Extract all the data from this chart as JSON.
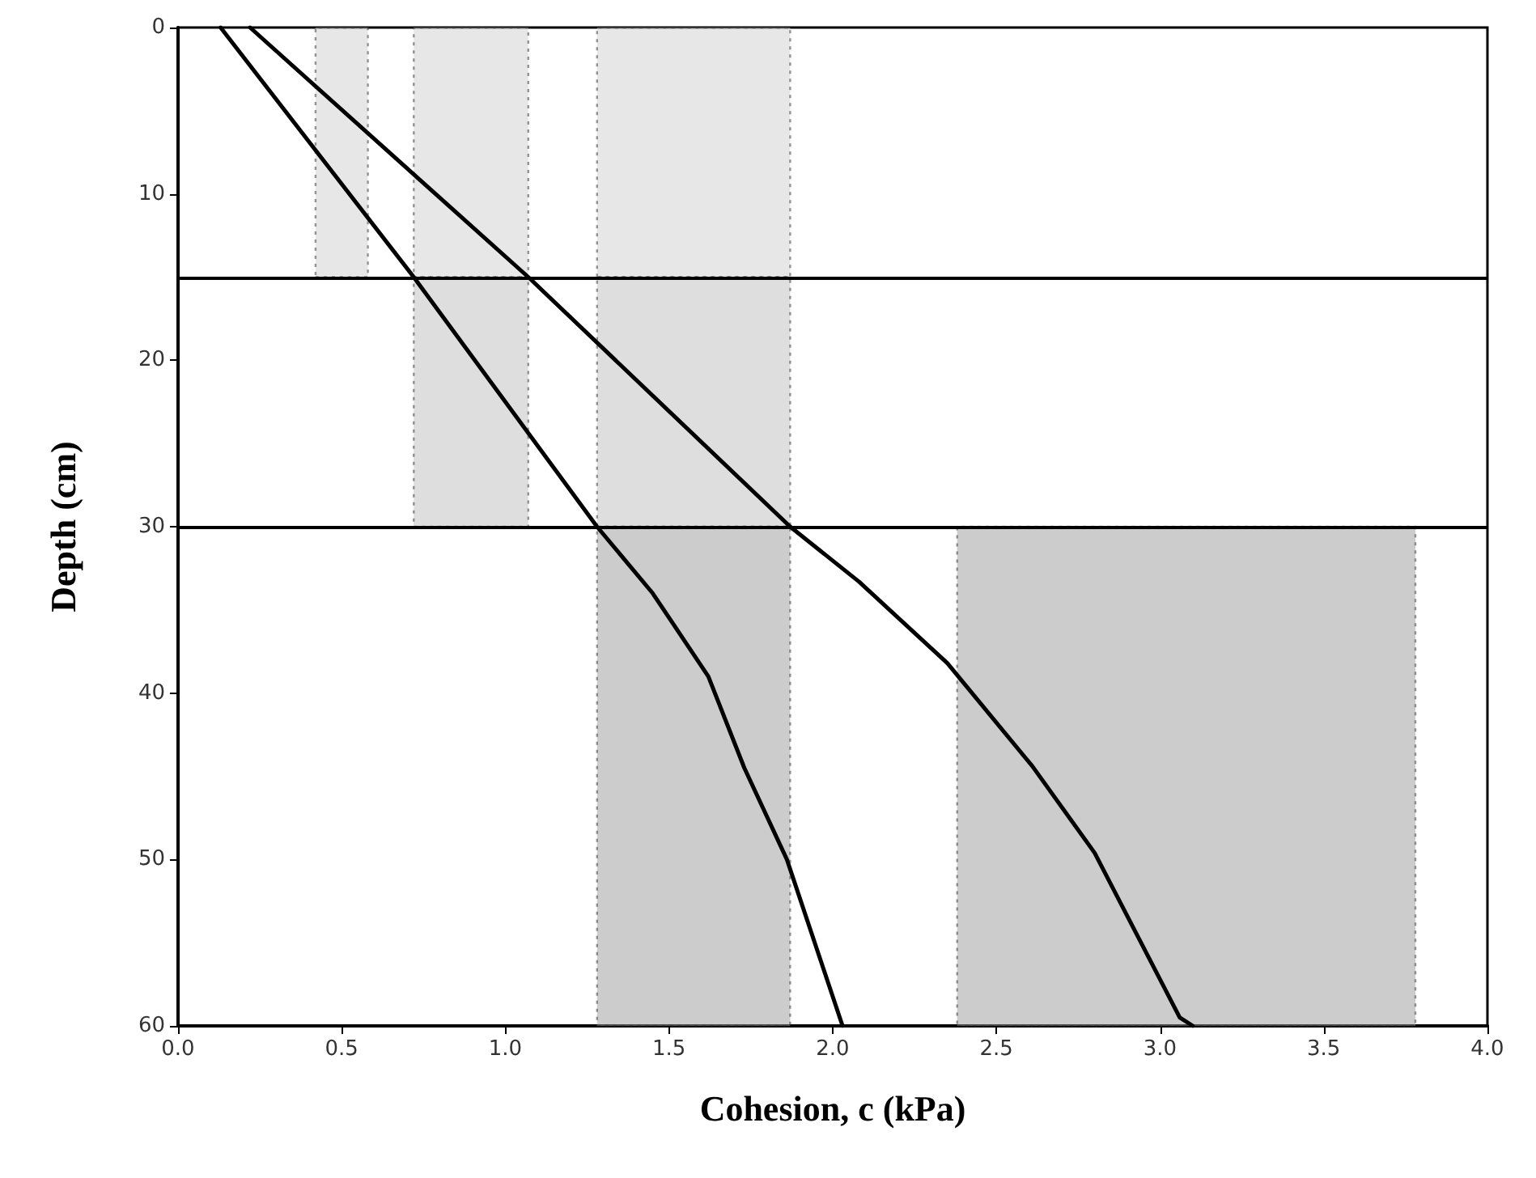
{
  "chart_data": {
    "type": "line",
    "xlabel": "Cohesion, c (kPa)",
    "ylabel": "Depth (cm)",
    "xlim": [
      0,
      4
    ],
    "xticks": [
      {
        "value": 0,
        "label": "0.0"
      },
      {
        "value": 0.5,
        "label": "0.5"
      },
      {
        "value": 1,
        "label": "1.0"
      },
      {
        "value": 1.5,
        "label": "1.5"
      },
      {
        "value": 2,
        "label": "2.0"
      },
      {
        "value": 2.5,
        "label": "2.5"
      },
      {
        "value": 3,
        "label": "3.0"
      },
      {
        "value": 3.5,
        "label": "3.5"
      },
      {
        "value": 4,
        "label": "4.0"
      }
    ],
    "ylim": [
      60,
      0
    ],
    "yticks": [
      0,
      10,
      20,
      30,
      40,
      50,
      60
    ],
    "grid": false,
    "marker": "none",
    "line_style": "solid",
    "ref_lines": [
      {
        "axis": "y",
        "value": 15,
        "color": "#000000"
      },
      {
        "axis": "y",
        "value": 30,
        "color": "#000000"
      }
    ],
    "series": [
      {
        "type": "area",
        "color": "#cfcfcf",
        "x": [
          0.42,
          0.58
        ],
        "values": [
          null,
          null
        ],
        "lower": [
          0,
          0
        ],
        "upper": [
          15,
          15
        ]
      },
      {
        "type": "area",
        "color": "#cfcfcf",
        "x": [
          0.72,
          1.07
        ],
        "values": [
          null,
          null
        ],
        "lower": [
          0,
          0
        ],
        "upper": [
          15,
          15
        ]
      },
      {
        "type": "area",
        "color": "#cfcfcf",
        "x": [
          1.28,
          1.87
        ],
        "values": [
          null,
          null
        ],
        "lower": [
          0,
          0
        ],
        "upper": [
          15,
          15
        ]
      },
      {
        "type": "area",
        "color": "#bdbdbd",
        "x": [
          0.72,
          1.07
        ],
        "values": [
          null,
          null
        ],
        "lower": [
          15,
          15
        ],
        "upper": [
          30,
          30
        ]
      },
      {
        "type": "area",
        "color": "#bdbdbd",
        "x": [
          1.28,
          1.87
        ],
        "values": [
          null,
          null
        ],
        "lower": [
          15,
          15
        ],
        "upper": [
          30,
          30
        ]
      },
      {
        "type": "area",
        "color": "#9a9a9a",
        "x": [
          1.28,
          1.87
        ],
        "values": [
          null,
          null
        ],
        "lower": [
          30,
          30
        ],
        "upper": [
          60,
          60
        ]
      },
      {
        "type": "area",
        "color": "#9a9a9a",
        "x": [
          2.38,
          3.78
        ],
        "values": [
          null,
          null
        ],
        "lower": [
          30,
          30
        ],
        "upper": [
          60,
          60
        ]
      },
      {
        "color": "#000000",
        "x": [
          0.13,
          0.72,
          1.28,
          1.45,
          1.62,
          1.73,
          1.86,
          2.03
        ],
        "values": [
          0,
          15,
          30,
          34,
          39,
          44.5,
          50,
          60
        ]
      },
      {
        "color": "#000000",
        "x": [
          0.22,
          1.07,
          1.87,
          2.08,
          2.35,
          2.61,
          2.8,
          3.06,
          3.1
        ],
        "values": [
          0,
          15,
          30,
          33.3,
          38.2,
          44.4,
          49.6,
          59.5,
          60
        ]
      }
    ]
  }
}
